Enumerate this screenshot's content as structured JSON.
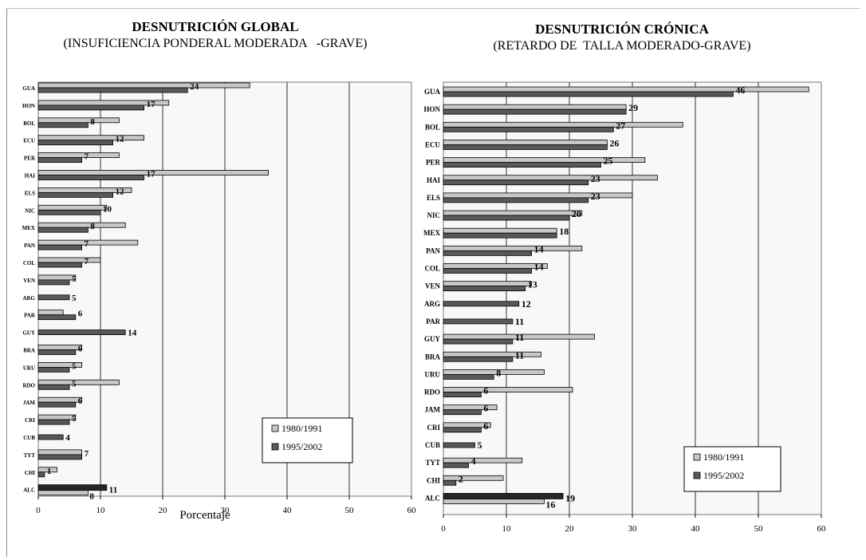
{
  "colors": {
    "bar_1980": "#c8c8c8",
    "bar_1995": "#595959",
    "bar_alc_1995": "#262626",
    "plot_bg": "#f8f8f8",
    "grid": "#000000"
  },
  "chart_data": [
    {
      "type": "bar",
      "orientation": "horizontal",
      "title": "DESNUTRICIÓN GLOBAL",
      "subtitle": "(INSUFICIENCIA PONDERAL MODERADA   -GRAVE)",
      "xlabel": "Porcentaje",
      "xlim": [
        0,
        60
      ],
      "xticks": [
        "0",
        "10",
        "20",
        "30",
        "40",
        "50",
        "60"
      ],
      "grid": true,
      "legend_position": "bottom-right",
      "categories": [
        "GUA",
        "HON",
        "BOL",
        "ECU",
        "PER",
        "HAI",
        "ELS",
        "NIC",
        "MEX",
        "PAN",
        "COL",
        "VEN",
        "ARG",
        "PAR",
        "GUY",
        "BRA",
        "URU",
        "RDO",
        "JAM",
        "CRI",
        "CUB",
        "TYT",
        "CHI",
        "ALC"
      ],
      "series": [
        {
          "name": "1980/1991",
          "values": [
            34,
            21,
            13,
            17,
            13,
            37,
            15,
            11,
            14,
            16,
            10,
            6,
            null,
            4,
            null,
            7,
            7,
            13,
            7,
            6,
            null,
            7,
            3,
            8
          ]
        },
        {
          "name": "1995/2002",
          "values": [
            24,
            17,
            8,
            12,
            7,
            17,
            12,
            10,
            8,
            7,
            7,
            5,
            5,
            6,
            14,
            6,
            5,
            5,
            6,
            5,
            4,
            7,
            1,
            11
          ]
        }
      ],
      "value_labels": [
        "24",
        "17",
        "8",
        "12",
        "7",
        "17",
        "12",
        "10",
        "8",
        "7",
        "7",
        "5",
        "5",
        "6",
        "14",
        "6",
        "5",
        "5",
        "6",
        "5",
        "4",
        "7",
        "1",
        "11"
      ],
      "extra_labels": [
        {
          "category": "ALC",
          "text": "8"
        }
      ]
    },
    {
      "type": "bar",
      "orientation": "horizontal",
      "title": "DESNUTRICIÓN CRÓNICA",
      "subtitle": "(RETARDO DE  TALLA MODERADO-GRAVE)",
      "xlabel": "",
      "xlim": [
        0,
        60
      ],
      "xticks": [
        "0",
        "10",
        "20",
        "30",
        "40",
        "50",
        "60"
      ],
      "grid": true,
      "legend_position": "bottom-right",
      "categories": [
        "GUA",
        "HON",
        "BOL",
        "ECU",
        "PER",
        "HAI",
        "ELS",
        "NIC",
        "MEX",
        "PAN",
        "COL",
        "VEN",
        "ARG",
        "PAR",
        "GUY",
        "BRA",
        "URU",
        "RDO",
        "JAM",
        "CRI",
        "CUB",
        "TYT",
        "CHI",
        "ALC"
      ],
      "series": [
        {
          "name": "1980/1991",
          "values": [
            58,
            29,
            38,
            26,
            32,
            34,
            30,
            22,
            18,
            22,
            16.5,
            14,
            null,
            null,
            24,
            15.5,
            16,
            20.5,
            8.5,
            7.5,
            null,
            12.5,
            9.5,
            16
          ]
        },
        {
          "name": "1995/2002",
          "values": [
            46,
            29,
            27,
            26,
            25,
            23,
            23,
            20,
            18,
            14,
            14,
            13,
            12,
            11,
            11,
            11,
            8,
            6,
            6,
            6,
            5,
            4,
            2,
            19
          ]
        }
      ],
      "value_labels": [
        "46",
        "29",
        "27",
        "26",
        "25",
        "23",
        "23",
        "20",
        "18",
        "14",
        "14",
        "13",
        "12",
        "11",
        "11",
        "11",
        "8",
        "6",
        "6",
        "6",
        "5",
        "4",
        "2",
        "19"
      ],
      "extra_labels": [
        {
          "category": "ALC",
          "text": "16"
        }
      ]
    }
  ]
}
